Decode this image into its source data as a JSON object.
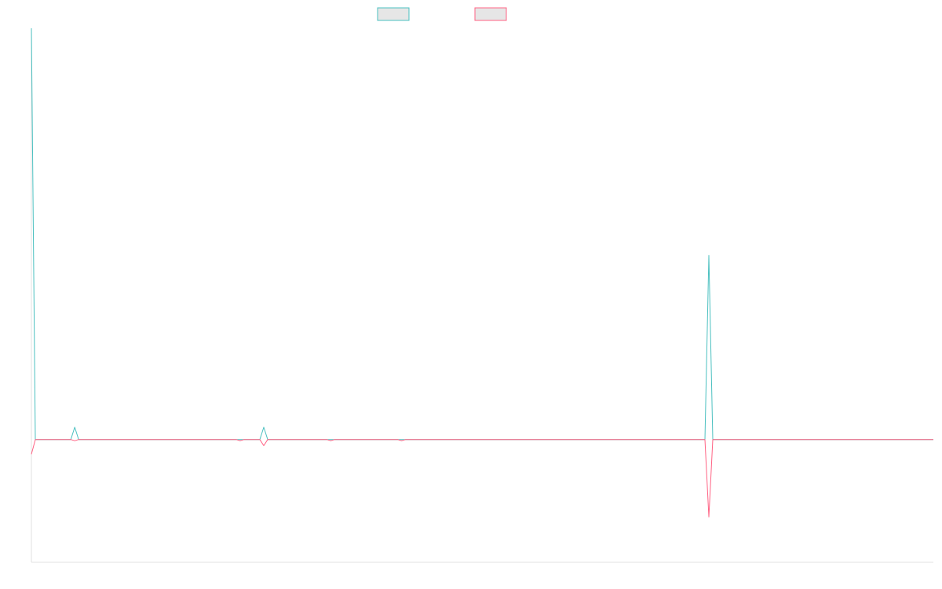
{
  "chart_data": {
    "type": "line",
    "title": "",
    "xlabel": "",
    "ylabel": "",
    "grid": false,
    "legend_position": "top-center",
    "x_count": 230,
    "ylim": [
      -100,
      335
    ],
    "series": [
      {
        "color": "#4bc0c0",
        "fill": "#e6e6e6",
        "points": [
          [
            0,
            335
          ],
          [
            1,
            0
          ],
          [
            10,
            0
          ],
          [
            11,
            10
          ],
          [
            12,
            0
          ],
          [
            52,
            0
          ],
          [
            53,
            0
          ],
          [
            54,
            0
          ],
          [
            58,
            0
          ],
          [
            59,
            10
          ],
          [
            60,
            0
          ],
          [
            75,
            0
          ],
          [
            76,
            0
          ],
          [
            77,
            0
          ],
          [
            93,
            0
          ],
          [
            94,
            0
          ],
          [
            95,
            0
          ],
          [
            171,
            0
          ],
          [
            172,
            150
          ],
          [
            173,
            0
          ],
          [
            229,
            0
          ]
        ]
      },
      {
        "color": "#ff6384",
        "fill": "#e6e6e6",
        "points": [
          [
            0,
            -12
          ],
          [
            1,
            0
          ],
          [
            10,
            0
          ],
          [
            11,
            -1
          ],
          [
            12,
            0
          ],
          [
            52,
            0
          ],
          [
            53,
            -1
          ],
          [
            54,
            0
          ],
          [
            58,
            0
          ],
          [
            59,
            -5
          ],
          [
            60,
            0
          ],
          [
            75,
            0
          ],
          [
            76,
            -1
          ],
          [
            77,
            0
          ],
          [
            93,
            0
          ],
          [
            94,
            -1
          ],
          [
            95,
            0
          ],
          [
            171,
            0
          ],
          [
            172,
            -63
          ],
          [
            173,
            0
          ],
          [
            229,
            0
          ]
        ]
      }
    ]
  }
}
